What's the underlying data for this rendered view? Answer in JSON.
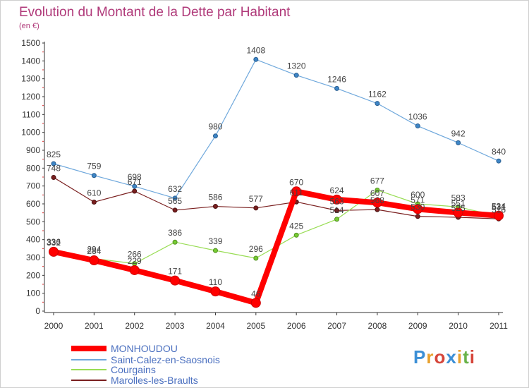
{
  "title": "Evolution du Montant de la Dette par Habitant",
  "subtitle": "(en €)",
  "chart_data": {
    "type": "line",
    "title": "Evolution du Montant de la Dette par Habitant",
    "ylabel": "(en €)",
    "xlabel": "",
    "x": [
      "2000",
      "2001",
      "2002",
      "2003",
      "2004",
      "2005",
      "2006",
      "2007",
      "2008",
      "2009",
      "2010",
      "2011"
    ],
    "ylim": [
      0,
      1500
    ],
    "yticks": [
      0,
      100,
      200,
      300,
      400,
      500,
      600,
      700,
      800,
      900,
      1000,
      1100,
      1200,
      1300,
      1400,
      1500
    ],
    "grid": false,
    "legend_position": "bottom-left",
    "series": [
      {
        "name": "MONHOUDOU",
        "color": "#ff0000",
        "values": [
          332,
          284,
          229,
          171,
          110,
          46,
          670,
          624,
          607,
          571,
          551,
          534
        ]
      },
      {
        "name": "Saint-Calez-en-Saosnois",
        "color": "#6fa8dc",
        "values": [
          825,
          759,
          698,
          632,
          980,
          1408,
          1320,
          1246,
          1162,
          1036,
          942,
          840
        ]
      },
      {
        "name": "Courgains",
        "color": "#99dd55",
        "values": [
          336,
          294,
          266,
          386,
          339,
          296,
          425,
          514,
          677,
          600,
          583,
          531
        ]
      },
      {
        "name": "Marolles-les-Braults",
        "color": "#7a1f1f",
        "values": [
          748,
          610,
          671,
          565,
          586,
          577,
          611,
          563,
          568,
          530,
          525,
          516
        ]
      }
    ]
  },
  "legend": [
    {
      "label": "MONHOUDOU",
      "color": "#ff0000"
    },
    {
      "label": "Saint-Calez-en-Saosnois",
      "color": "#6fa8dc"
    },
    {
      "label": "Courgains",
      "color": "#99dd55"
    },
    {
      "label": "Marolles-les-Braults",
      "color": "#7a1f1f"
    }
  ],
  "logo": {
    "p": "P",
    "r": "r",
    "o": "o",
    "x": "x",
    "i1": "i",
    "t": "t",
    "i2": "i"
  }
}
